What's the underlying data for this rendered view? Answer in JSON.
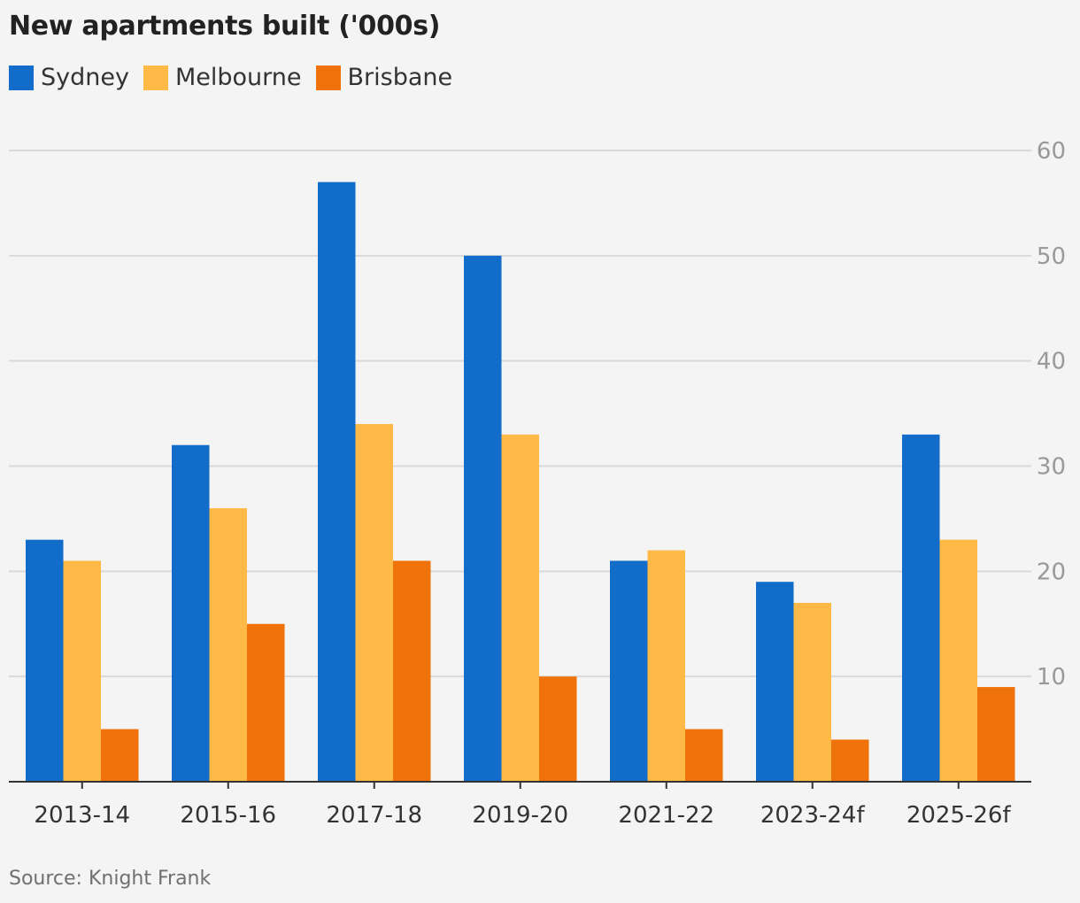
{
  "title": "New apartments built ('000s)",
  "source": "Source: Knight Frank",
  "legend": [
    {
      "name": "Sydney",
      "color": "#116dc9"
    },
    {
      "name": "Melbourne",
      "color": "#ffb946"
    },
    {
      "name": "Brisbane",
      "color": "#ef730a"
    }
  ],
  "chart_data": {
    "type": "bar",
    "title": "New apartments built ('000s)",
    "categories": [
      "2013-14",
      "2015-16",
      "2017-18",
      "2019-20",
      "2021-22",
      "2023-24f",
      "2025-26f"
    ],
    "series": [
      {
        "name": "Sydney",
        "color": "#116dc9",
        "values": [
          23,
          32,
          57,
          50,
          21,
          19,
          33
        ]
      },
      {
        "name": "Melbourne",
        "color": "#ffb946",
        "values": [
          21,
          26,
          34,
          33,
          22,
          17,
          23
        ]
      },
      {
        "name": "Brisbane",
        "color": "#ef730a",
        "values": [
          5,
          15,
          21,
          10,
          5,
          4,
          9
        ]
      }
    ],
    "ylim": [
      0,
      60
    ],
    "yticks": [
      10,
      20,
      30,
      40,
      50,
      60
    ],
    "y_axis_side": "right",
    "grid": true,
    "legend_position": "top-left"
  }
}
